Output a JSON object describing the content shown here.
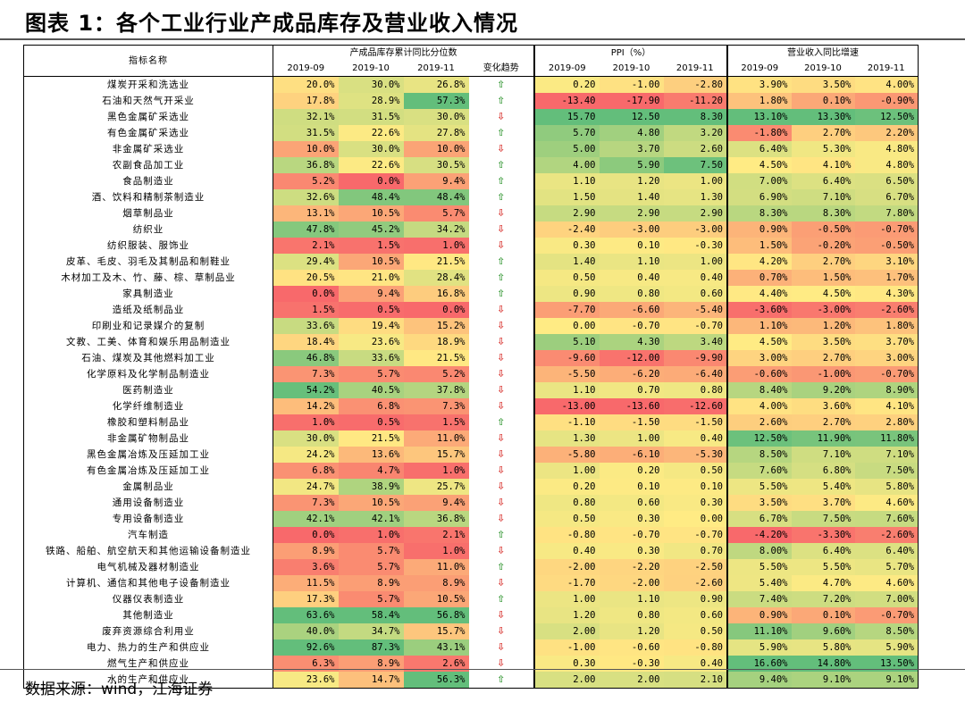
{
  "title": "图表 1：各个工业行业产成品库存及营业收入情况",
  "source": "数据来源：wind，江海证券",
  "header": {
    "name_col": "指标名称",
    "group_inventory": "产成品库存累计同比分位数",
    "group_ppi": "PPI（%）",
    "group_revenue": "营业收入同比增速",
    "months": [
      "2019-09",
      "2019-10",
      "2019-11"
    ],
    "trend": "变化趋势"
  },
  "colors": {
    "up_arrow": "#3a9a3a",
    "down_arrow": "#d7302c"
  },
  "rows": [
    {
      "name": "煤炭开采和洗选业",
      "inv": [
        "20.0%",
        "30.0%",
        "26.8%"
      ],
      "trend": "up",
      "ppi": [
        "0.20",
        "-1.00",
        "-2.80"
      ],
      "rev": [
        "3.90%",
        "3.50%",
        "4.00%"
      ]
    },
    {
      "name": "石油和天然气开采业",
      "inv": [
        "17.8%",
        "28.9%",
        "57.3%"
      ],
      "trend": "up",
      "ppi": [
        "-13.40",
        "-17.90",
        "-11.20"
      ],
      "rev": [
        "1.80%",
        "0.10%",
        "-0.90%"
      ]
    },
    {
      "name": "黑色金属矿采选业",
      "inv": [
        "32.1%",
        "31.5%",
        "30.0%"
      ],
      "trend": "down",
      "ppi": [
        "15.70",
        "12.50",
        "8.30"
      ],
      "rev": [
        "13.10%",
        "13.30%",
        "12.50%"
      ]
    },
    {
      "name": "有色金属矿采选业",
      "inv": [
        "31.5%",
        "22.6%",
        "27.8%"
      ],
      "trend": "up",
      "ppi": [
        "5.70",
        "4.80",
        "3.20"
      ],
      "rev": [
        "-1.80%",
        "2.70%",
        "2.20%"
      ]
    },
    {
      "name": "非金属矿采选业",
      "inv": [
        "10.0%",
        "30.0%",
        "10.0%"
      ],
      "trend": "down",
      "ppi": [
        "5.00",
        "3.70",
        "2.60"
      ],
      "rev": [
        "6.40%",
        "5.30%",
        "4.80%"
      ]
    },
    {
      "name": "农副食品加工业",
      "inv": [
        "36.8%",
        "22.6%",
        "30.5%"
      ],
      "trend": "up",
      "ppi": [
        "4.00",
        "5.90",
        "7.50"
      ],
      "rev": [
        "4.50%",
        "4.10%",
        "4.80%"
      ]
    },
    {
      "name": "食品制造业",
      "inv": [
        "5.2%",
        "0.0%",
        "9.4%"
      ],
      "trend": "up",
      "ppi": [
        "1.10",
        "1.20",
        "1.00"
      ],
      "rev": [
        "7.00%",
        "6.40%",
        "6.50%"
      ]
    },
    {
      "name": "酒、饮料和精制茶制造业",
      "inv": [
        "32.6%",
        "48.4%",
        "48.4%"
      ],
      "trend": "up",
      "ppi": [
        "1.50",
        "1.40",
        "1.30"
      ],
      "rev": [
        "6.90%",
        "7.10%",
        "6.70%"
      ]
    },
    {
      "name": "烟草制品业",
      "inv": [
        "13.1%",
        "10.5%",
        "5.7%"
      ],
      "trend": "down",
      "ppi": [
        "2.90",
        "2.90",
        "2.90"
      ],
      "rev": [
        "8.30%",
        "8.30%",
        "7.80%"
      ]
    },
    {
      "name": "纺织业",
      "inv": [
        "47.8%",
        "45.2%",
        "34.2%"
      ],
      "trend": "down",
      "ppi": [
        "-2.40",
        "-3.00",
        "-3.00"
      ],
      "rev": [
        "0.90%",
        "-0.50%",
        "-0.70%"
      ]
    },
    {
      "name": "纺织服装、服饰业",
      "inv": [
        "2.1%",
        "1.5%",
        "1.0%"
      ],
      "trend": "down",
      "ppi": [
        "0.30",
        "0.10",
        "-0.30"
      ],
      "rev": [
        "1.50%",
        "-0.20%",
        "-0.50%"
      ]
    },
    {
      "name": "皮革、毛皮、羽毛及其制品和制鞋业",
      "inv": [
        "29.4%",
        "10.5%",
        "21.5%"
      ],
      "trend": "up",
      "ppi": [
        "1.40",
        "1.10",
        "1.00"
      ],
      "rev": [
        "4.20%",
        "2.70%",
        "3.10%"
      ]
    },
    {
      "name": "木材加工及木、竹、藤、棕、草制品业",
      "inv": [
        "20.5%",
        "21.0%",
        "28.4%"
      ],
      "trend": "up",
      "ppi": [
        "0.50",
        "0.40",
        "0.40"
      ],
      "rev": [
        "0.70%",
        "1.50%",
        "1.70%"
      ]
    },
    {
      "name": "家具制造业",
      "inv": [
        "0.0%",
        "9.4%",
        "16.8%"
      ],
      "trend": "up",
      "ppi": [
        "0.90",
        "0.80",
        "0.60"
      ],
      "rev": [
        "4.40%",
        "4.50%",
        "4.30%"
      ]
    },
    {
      "name": "造纸及纸制品业",
      "inv": [
        "1.5%",
        "0.5%",
        "0.0%"
      ],
      "trend": "down",
      "ppi": [
        "-7.70",
        "-6.60",
        "-5.40"
      ],
      "rev": [
        "-3.60%",
        "-3.00%",
        "-2.60%"
      ]
    },
    {
      "name": "印刷业和记录媒介的复制",
      "inv": [
        "33.6%",
        "19.4%",
        "15.2%"
      ],
      "trend": "down",
      "ppi": [
        "0.00",
        "-0.70",
        "-0.70"
      ],
      "rev": [
        "1.10%",
        "1.20%",
        "1.80%"
      ]
    },
    {
      "name": "文教、工美、体育和娱乐用品制造业",
      "inv": [
        "18.4%",
        "23.6%",
        "18.9%"
      ],
      "trend": "down",
      "ppi": [
        "5.10",
        "4.30",
        "3.40"
      ],
      "rev": [
        "4.50%",
        "3.50%",
        "3.70%"
      ]
    },
    {
      "name": "石油、煤炭及其他燃料加工业",
      "inv": [
        "46.8%",
        "33.6%",
        "21.5%"
      ],
      "trend": "down",
      "ppi": [
        "-9.60",
        "-12.00",
        "-9.90"
      ],
      "rev": [
        "3.00%",
        "2.70%",
        "3.00%"
      ]
    },
    {
      "name": "化学原料及化学制品制造业",
      "inv": [
        "7.3%",
        "5.7%",
        "5.2%"
      ],
      "trend": "down",
      "ppi": [
        "-5.50",
        "-6.20",
        "-6.40"
      ],
      "rev": [
        "-0.60%",
        "-1.00%",
        "-0.70%"
      ]
    },
    {
      "name": "医药制造业",
      "inv": [
        "54.2%",
        "40.5%",
        "37.8%"
      ],
      "trend": "down",
      "ppi": [
        "1.10",
        "0.70",
        "0.80"
      ],
      "rev": [
        "8.40%",
        "9.20%",
        "8.90%"
      ]
    },
    {
      "name": "化学纤维制造业",
      "inv": [
        "14.2%",
        "6.8%",
        "7.3%"
      ],
      "trend": "down",
      "ppi": [
        "-13.00",
        "-13.60",
        "-12.60"
      ],
      "rev": [
        "4.00%",
        "3.60%",
        "4.10%"
      ]
    },
    {
      "name": "橡胶和塑料制品业",
      "inv": [
        "1.0%",
        "0.5%",
        "1.5%"
      ],
      "trend": "up",
      "ppi": [
        "-1.10",
        "-1.50",
        "-1.50"
      ],
      "rev": [
        "2.60%",
        "2.70%",
        "2.80%"
      ]
    },
    {
      "name": "非金属矿物制品业",
      "inv": [
        "30.0%",
        "21.5%",
        "11.0%"
      ],
      "trend": "down",
      "ppi": [
        "1.30",
        "1.00",
        "0.40"
      ],
      "rev": [
        "12.50%",
        "11.90%",
        "11.80%"
      ]
    },
    {
      "name": "黑色金属冶炼及压延加工业",
      "inv": [
        "24.2%",
        "13.6%",
        "15.7%"
      ],
      "trend": "down",
      "ppi": [
        "-5.80",
        "-6.10",
        "-5.30"
      ],
      "rev": [
        "8.50%",
        "7.10%",
        "7.10%"
      ]
    },
    {
      "name": "有色金属冶炼及压延加工业",
      "inv": [
        "6.8%",
        "4.7%",
        "1.0%"
      ],
      "trend": "down",
      "ppi": [
        "1.00",
        "0.20",
        "0.50"
      ],
      "rev": [
        "7.60%",
        "6.80%",
        "7.50%"
      ]
    },
    {
      "name": "金属制品业",
      "inv": [
        "24.7%",
        "38.9%",
        "25.7%"
      ],
      "trend": "down",
      "ppi": [
        "0.20",
        "0.10",
        "0.10"
      ],
      "rev": [
        "5.50%",
        "5.40%",
        "5.80%"
      ]
    },
    {
      "name": "通用设备制造业",
      "inv": [
        "7.3%",
        "10.5%",
        "9.4%"
      ],
      "trend": "down",
      "ppi": [
        "0.80",
        "0.60",
        "0.30"
      ],
      "rev": [
        "3.50%",
        "3.70%",
        "4.60%"
      ]
    },
    {
      "name": "专用设备制造业",
      "inv": [
        "42.1%",
        "42.1%",
        "36.8%"
      ],
      "trend": "down",
      "ppi": [
        "0.50",
        "0.30",
        "0.00"
      ],
      "rev": [
        "6.70%",
        "7.50%",
        "7.60%"
      ]
    },
    {
      "name": "汽车制造",
      "inv": [
        "0.0%",
        "1.0%",
        "2.1%"
      ],
      "trend": "up",
      "ppi": [
        "-0.80",
        "-0.70",
        "-0.70"
      ],
      "rev": [
        "-4.20%",
        "-3.30%",
        "-2.60%"
      ]
    },
    {
      "name": "铁路、船舶、航空航天和其他运输设备制造业",
      "inv": [
        "8.9%",
        "5.7%",
        "1.0%"
      ],
      "trend": "down",
      "ppi": [
        "0.40",
        "0.30",
        "0.70"
      ],
      "rev": [
        "8.00%",
        "6.40%",
        "6.40%"
      ]
    },
    {
      "name": "电气机械及器材制造业",
      "inv": [
        "3.6%",
        "5.7%",
        "11.0%"
      ],
      "trend": "up",
      "ppi": [
        "-2.00",
        "-2.20",
        "-2.50"
      ],
      "rev": [
        "5.50%",
        "5.50%",
        "5.70%"
      ]
    },
    {
      "name": "计算机、通信和其他电子设备制造业",
      "inv": [
        "11.5%",
        "8.9%",
        "8.9%"
      ],
      "trend": "down",
      "ppi": [
        "-1.70",
        "-2.00",
        "-2.60"
      ],
      "rev": [
        "5.40%",
        "4.70%",
        "4.60%"
      ]
    },
    {
      "name": "仪器仪表制造业",
      "inv": [
        "17.3%",
        "5.7%",
        "10.5%"
      ],
      "trend": "up",
      "ppi": [
        "1.00",
        "1.10",
        "0.90"
      ],
      "rev": [
        "7.40%",
        "7.20%",
        "7.00%"
      ]
    },
    {
      "name": "其他制造业",
      "inv": [
        "63.6%",
        "58.4%",
        "56.8%"
      ],
      "trend": "down",
      "ppi": [
        "1.20",
        "0.80",
        "0.60"
      ],
      "rev": [
        "0.90%",
        "0.10%",
        "-0.70%"
      ]
    },
    {
      "name": "废弃资源综合利用业",
      "inv": [
        "40.0%",
        "34.7%",
        "15.7%"
      ],
      "trend": "down",
      "ppi": [
        "2.00",
        "1.20",
        "0.50"
      ],
      "rev": [
        "11.10%",
        "9.60%",
        "8.50%"
      ]
    },
    {
      "name": "电力、热力的生产和供应业",
      "inv": [
        "92.6%",
        "87.3%",
        "43.1%"
      ],
      "trend": "down",
      "ppi": [
        "-1.00",
        "-0.60",
        "-0.80"
      ],
      "rev": [
        "5.90%",
        "5.80%",
        "5.90%"
      ]
    },
    {
      "name": "燃气生产和供应业",
      "inv": [
        "6.3%",
        "8.9%",
        "2.6%"
      ],
      "trend": "down",
      "ppi": [
        "0.30",
        "-0.30",
        "0.40"
      ],
      "rev": [
        "16.60%",
        "14.80%",
        "13.50%"
      ]
    },
    {
      "name": "水的生产和供应业",
      "inv": [
        "23.6%",
        "14.7%",
        "56.3%"
      ],
      "trend": "up",
      "ppi": [
        "2.00",
        "2.00",
        "2.10"
      ],
      "rev": [
        "9.40%",
        "9.10%",
        "9.10%"
      ]
    }
  ]
}
